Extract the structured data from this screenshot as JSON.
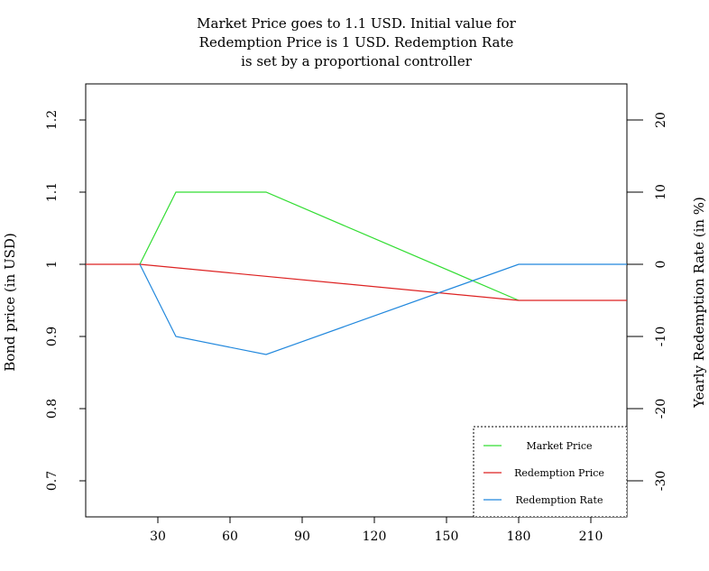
{
  "chart_data": {
    "type": "line",
    "title_lines": [
      "Market Price goes to 1.1 USD. Initial value for",
      "Redemption Price is 1 USD. Redemption Rate",
      "is set by a proportional controller"
    ],
    "xlabel": "",
    "ylabel": "Bond price (in USD)",
    "ylabel_right": "Yearly Redemption Rate (in %)",
    "xlim": [
      0,
      225
    ],
    "ylim": [
      0.65,
      1.25
    ],
    "ylim_right": [
      -35,
      25
    ],
    "xticks": [
      30,
      60,
      90,
      120,
      150,
      180,
      210
    ],
    "xtick_labels": [
      "30",
      "60",
      "90",
      "120",
      "150",
      "180",
      "210"
    ],
    "yticks": [
      0.7,
      0.8,
      0.9,
      1.0,
      1.1,
      1.2
    ],
    "ytick_labels": [
      "0.7",
      "0.8",
      "0.9",
      "1",
      "1.1",
      "1.2"
    ],
    "yticks_right": [
      -30,
      -20,
      -10,
      0,
      10,
      20
    ],
    "ytick_right_labels": [
      "-30",
      "-20",
      "-10",
      "0",
      "10",
      "20"
    ],
    "grid": false,
    "legend_position": "bottom-right",
    "series": [
      {
        "name": "Market Price",
        "color": "#33dd33",
        "axis": "left",
        "x": [
          22.5,
          37.5,
          75,
          180
        ],
        "y": [
          1.0,
          1.1,
          1.1,
          0.95
        ]
      },
      {
        "name": "Redemption Price",
        "color": "#dd2222",
        "axis": "left",
        "x": [
          0,
          22.5,
          180,
          225
        ],
        "y": [
          1.0,
          1.0,
          0.95,
          0.95
        ]
      },
      {
        "name": "Redemption Rate",
        "color": "#2288dd",
        "axis": "right",
        "x": [
          22.5,
          37.5,
          75,
          180,
          225
        ],
        "y": [
          0,
          -10,
          -12.5,
          0,
          0
        ]
      }
    ]
  }
}
